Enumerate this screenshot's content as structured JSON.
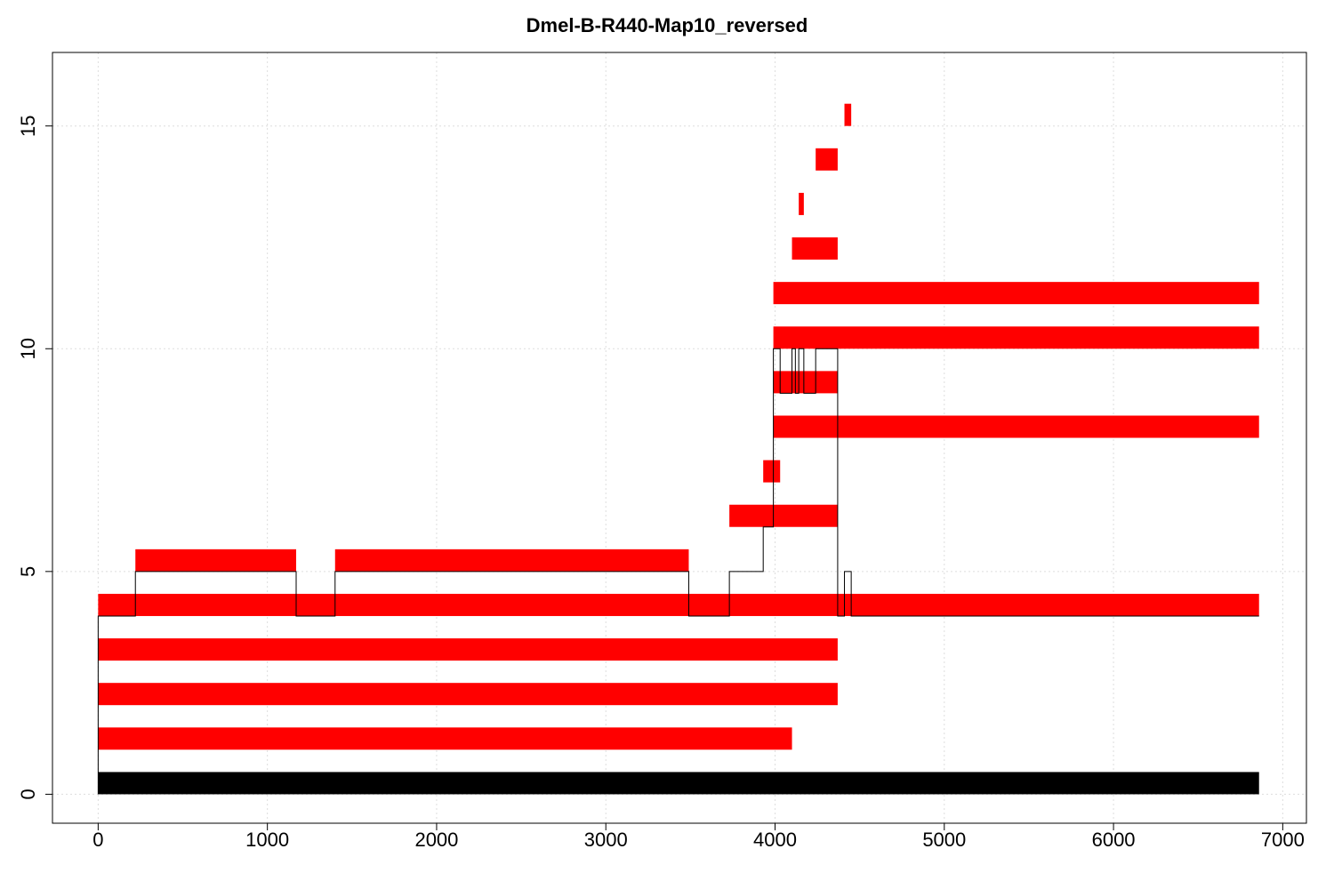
{
  "chart_data": {
    "type": "bar",
    "title": "Dmel-B-R440-Map10_reversed",
    "xlabel": "",
    "ylabel": "",
    "xlim": [
      -270,
      7140
    ],
    "ylim": [
      -0.65,
      16.65
    ],
    "xticks": [
      0,
      1000,
      2000,
      3000,
      4000,
      5000,
      6000,
      7000
    ],
    "yticks": [
      0,
      5,
      10,
      15
    ],
    "grid": true,
    "colors": {
      "reference": "#000000",
      "segment": "#ff0000",
      "connector": "#000000",
      "grid": "#dddddd"
    },
    "reference": {
      "level": 0,
      "start": 0,
      "end": 6860
    },
    "segments": [
      {
        "level": 1,
        "start": 0,
        "end": 4100
      },
      {
        "level": 2,
        "start": 0,
        "end": 4370
      },
      {
        "level": 3,
        "start": 0,
        "end": 4370
      },
      {
        "level": 4,
        "start": 0,
        "end": 6860
      },
      {
        "level": 5,
        "start": 220,
        "end": 1170
      },
      {
        "level": 5,
        "start": 1400,
        "end": 3490
      },
      {
        "level": 6,
        "start": 3730,
        "end": 4370
      },
      {
        "level": 7,
        "start": 3930,
        "end": 4030
      },
      {
        "level": 8,
        "start": 3990,
        "end": 6860
      },
      {
        "level": 9,
        "start": 3990,
        "end": 4370
      },
      {
        "level": 10,
        "start": 3990,
        "end": 6860
      },
      {
        "level": 11,
        "start": 3990,
        "end": 6860
      },
      {
        "level": 12,
        "start": 4100,
        "end": 4370
      },
      {
        "level": 13,
        "start": 4140,
        "end": 4170
      },
      {
        "level": 14,
        "start": 4240,
        "end": 4370
      },
      {
        "level": 15,
        "start": 4410,
        "end": 4450
      }
    ],
    "connector_path": [
      [
        0,
        0
      ],
      [
        0,
        4
      ],
      [
        220,
        4
      ],
      [
        220,
        5
      ],
      [
        1170,
        5
      ],
      [
        1170,
        4
      ],
      [
        1400,
        4
      ],
      [
        1400,
        5
      ],
      [
        3490,
        5
      ],
      [
        3490,
        4
      ],
      [
        3730,
        4
      ],
      [
        3730,
        5
      ],
      [
        3930,
        5
      ],
      [
        3930,
        6
      ],
      [
        3990,
        6
      ],
      [
        3990,
        10
      ],
      [
        4030,
        10
      ],
      [
        4030,
        9
      ],
      [
        4100,
        9
      ],
      [
        4100,
        10
      ],
      [
        4120,
        10
      ],
      [
        4120,
        9
      ],
      [
        4140,
        9
      ],
      [
        4140,
        10
      ],
      [
        4170,
        10
      ],
      [
        4170,
        9
      ],
      [
        4240,
        9
      ],
      [
        4240,
        10
      ],
      [
        4370,
        10
      ],
      [
        4370,
        4
      ],
      [
        4410,
        4
      ],
      [
        4410,
        5
      ],
      [
        4450,
        5
      ],
      [
        4450,
        4
      ],
      [
        6860,
        4
      ]
    ]
  }
}
